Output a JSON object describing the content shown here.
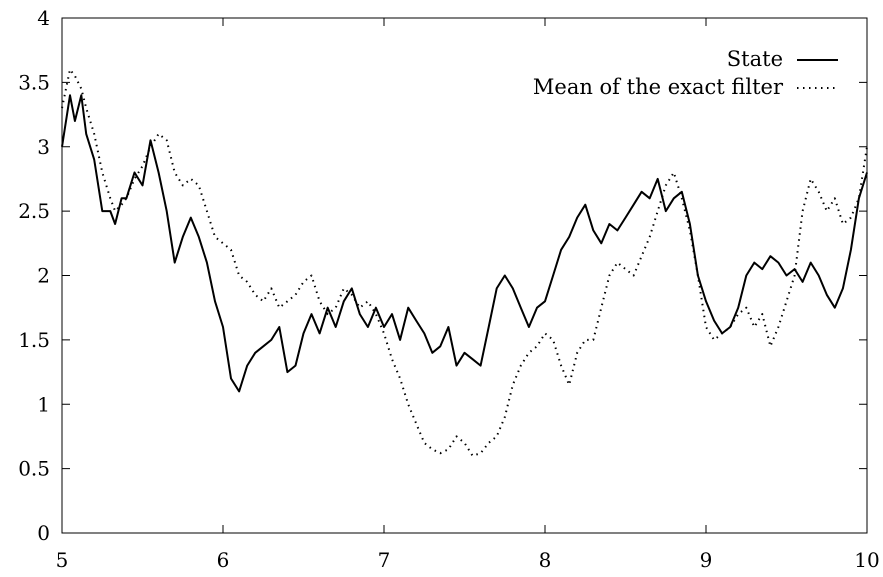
{
  "chart_data": {
    "type": "line",
    "title": "",
    "xlabel": "",
    "ylabel": "",
    "xlim": [
      5,
      10
    ],
    "ylim": [
      0,
      4
    ],
    "xticks": [
      5,
      6,
      7,
      8,
      9,
      10
    ],
    "yticks": [
      0,
      0.5,
      1,
      1.5,
      2,
      2.5,
      3,
      3.5,
      4
    ],
    "xtick_labels": [
      "5",
      "6",
      "7",
      "8",
      "9",
      "10"
    ],
    "ytick_labels": [
      "0",
      "0.5",
      "1",
      "1.5",
      "2",
      "2.5",
      "3",
      "3.5",
      "4"
    ],
    "grid": false,
    "legend_position": "top-right",
    "series": [
      {
        "name": "State",
        "style": "solid",
        "color": "#000000",
        "x": [
          5.0,
          5.05,
          5.08,
          5.12,
          5.15,
          5.2,
          5.25,
          5.3,
          5.33,
          5.37,
          5.4,
          5.45,
          5.5,
          5.55,
          5.6,
          5.65,
          5.7,
          5.75,
          5.8,
          5.85,
          5.9,
          5.95,
          6.0,
          6.05,
          6.1,
          6.15,
          6.2,
          6.25,
          6.3,
          6.35,
          6.4,
          6.45,
          6.5,
          6.55,
          6.6,
          6.65,
          6.7,
          6.75,
          6.8,
          6.85,
          6.9,
          6.95,
          7.0,
          7.05,
          7.1,
          7.15,
          7.2,
          7.25,
          7.3,
          7.35,
          7.4,
          7.45,
          7.5,
          7.55,
          7.6,
          7.65,
          7.7,
          7.75,
          7.8,
          7.85,
          7.9,
          7.95,
          8.0,
          8.05,
          8.1,
          8.15,
          8.2,
          8.25,
          8.3,
          8.35,
          8.4,
          8.45,
          8.5,
          8.55,
          8.6,
          8.65,
          8.7,
          8.75,
          8.8,
          8.85,
          8.9,
          8.95,
          9.0,
          9.05,
          9.1,
          9.15,
          9.2,
          9.25,
          9.3,
          9.35,
          9.4,
          9.45,
          9.5,
          9.55,
          9.6,
          9.65,
          9.7,
          9.75,
          9.8,
          9.85,
          9.9,
          9.95,
          10.0
        ],
        "y": [
          3.0,
          3.4,
          3.2,
          3.4,
          3.1,
          2.9,
          2.5,
          2.5,
          2.4,
          2.6,
          2.6,
          2.8,
          2.7,
          3.05,
          2.8,
          2.5,
          2.1,
          2.3,
          2.45,
          2.3,
          2.1,
          1.8,
          1.6,
          1.2,
          1.1,
          1.3,
          1.4,
          1.45,
          1.5,
          1.6,
          1.25,
          1.3,
          1.55,
          1.7,
          1.55,
          1.75,
          1.6,
          1.8,
          1.9,
          1.7,
          1.6,
          1.75,
          1.6,
          1.7,
          1.5,
          1.75,
          1.65,
          1.55,
          1.4,
          1.45,
          1.6,
          1.3,
          1.4,
          1.35,
          1.3,
          1.6,
          1.9,
          2.0,
          1.9,
          1.75,
          1.6,
          1.75,
          1.8,
          2.0,
          2.2,
          2.3,
          2.45,
          2.55,
          2.35,
          2.25,
          2.4,
          2.35,
          2.45,
          2.55,
          2.65,
          2.6,
          2.75,
          2.5,
          2.6,
          2.65,
          2.4,
          2.0,
          1.8,
          1.65,
          1.55,
          1.6,
          1.75,
          2.0,
          2.1,
          2.05,
          2.15,
          2.1,
          2.0,
          2.05,
          1.95,
          2.1,
          2.0,
          1.85,
          1.75,
          1.9,
          2.2,
          2.6,
          2.8
        ]
      },
      {
        "name": "Mean of the exact filter",
        "style": "dotted",
        "color": "#000000",
        "x": [
          5.0,
          5.05,
          5.08,
          5.12,
          5.15,
          5.2,
          5.25,
          5.3,
          5.33,
          5.37,
          5.4,
          5.45,
          5.5,
          5.55,
          5.6,
          5.65,
          5.7,
          5.75,
          5.8,
          5.85,
          5.9,
          5.95,
          6.0,
          6.05,
          6.1,
          6.15,
          6.2,
          6.25,
          6.3,
          6.35,
          6.4,
          6.45,
          6.5,
          6.55,
          6.6,
          6.65,
          6.7,
          6.75,
          6.8,
          6.85,
          6.9,
          6.95,
          7.0,
          7.05,
          7.1,
          7.15,
          7.2,
          7.25,
          7.3,
          7.35,
          7.4,
          7.45,
          7.5,
          7.55,
          7.6,
          7.65,
          7.7,
          7.75,
          7.8,
          7.85,
          7.9,
          7.95,
          8.0,
          8.05,
          8.1,
          8.15,
          8.2,
          8.25,
          8.3,
          8.35,
          8.4,
          8.45,
          8.5,
          8.55,
          8.6,
          8.65,
          8.7,
          8.75,
          8.8,
          8.85,
          8.9,
          8.95,
          9.0,
          9.05,
          9.1,
          9.15,
          9.2,
          9.25,
          9.3,
          9.35,
          9.4,
          9.45,
          9.5,
          9.55,
          9.6,
          9.65,
          9.7,
          9.75,
          9.8,
          9.85,
          9.9,
          9.95,
          10.0
        ],
        "y": [
          3.3,
          3.6,
          3.55,
          3.45,
          3.3,
          3.1,
          2.8,
          2.6,
          2.5,
          2.55,
          2.6,
          2.75,
          2.85,
          3.0,
          3.1,
          3.05,
          2.8,
          2.7,
          2.75,
          2.7,
          2.5,
          2.3,
          2.25,
          2.2,
          2.0,
          1.95,
          1.85,
          1.8,
          1.9,
          1.75,
          1.8,
          1.85,
          1.95,
          2.0,
          1.8,
          1.7,
          1.75,
          1.9,
          1.85,
          1.75,
          1.8,
          1.7,
          1.55,
          1.35,
          1.2,
          1.0,
          0.85,
          0.7,
          0.65,
          0.62,
          0.65,
          0.75,
          0.7,
          0.6,
          0.62,
          0.7,
          0.75,
          0.9,
          1.15,
          1.3,
          1.4,
          1.45,
          1.55,
          1.5,
          1.3,
          1.15,
          1.4,
          1.5,
          1.5,
          1.75,
          2.0,
          2.1,
          2.05,
          2.0,
          2.15,
          2.3,
          2.5,
          2.7,
          2.8,
          2.6,
          2.35,
          2.0,
          1.6,
          1.5,
          1.55,
          1.6,
          1.7,
          1.75,
          1.6,
          1.7,
          1.45,
          1.6,
          1.8,
          2.0,
          2.5,
          2.75,
          2.65,
          2.5,
          2.6,
          2.4,
          2.45,
          2.6,
          3.0
        ]
      }
    ]
  }
}
